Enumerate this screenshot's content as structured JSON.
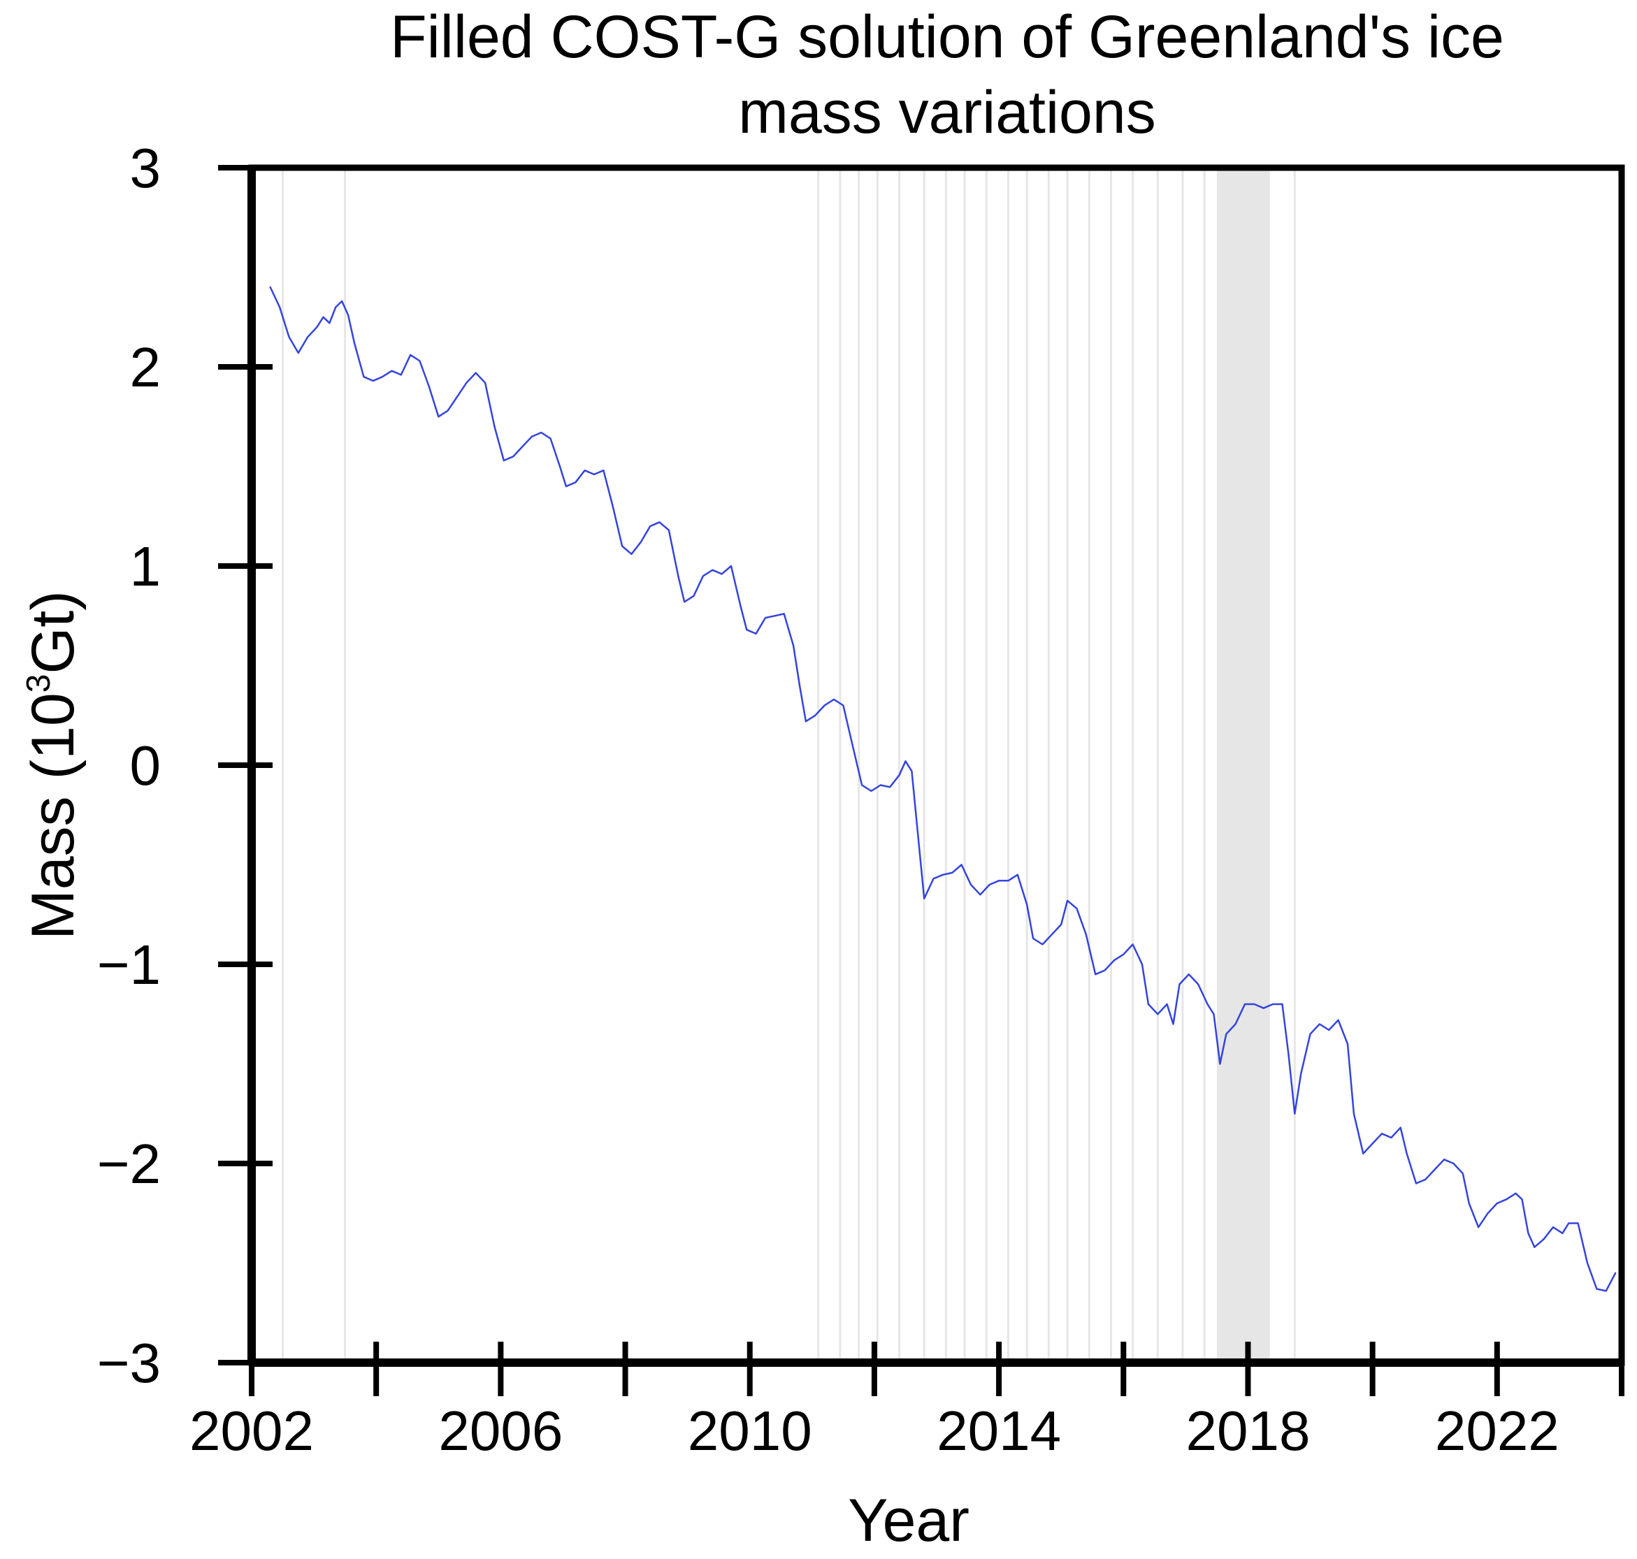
{
  "chart_data": {
    "type": "line",
    "title_lines": [
      "Filled COST-G solution of Greenland's ice",
      "mass variations"
    ],
    "xlabel": "Year",
    "ylabel": "Mass (10",
    "ylabel_sup": "3",
    "ylabel_unit": "Gt)",
    "xlim": [
      2002,
      2024
    ],
    "ylim": [
      -3,
      3
    ],
    "xticks": [
      2002,
      2004,
      2006,
      2008,
      2010,
      2012,
      2014,
      2016,
      2018,
      2020,
      2022,
      2024
    ],
    "xtick_labels": [
      {
        "value": 2002,
        "label": "2002"
      },
      {
        "value": 2006,
        "label": "2006"
      },
      {
        "value": 2010,
        "label": "2010"
      },
      {
        "value": 2014,
        "label": "2014"
      },
      {
        "value": 2018,
        "label": "2018"
      },
      {
        "value": 2022,
        "label": "2022"
      }
    ],
    "yticks": [
      {
        "value": 3,
        "label": "3"
      },
      {
        "value": 2,
        "label": "2"
      },
      {
        "value": 1,
        "label": "1"
      },
      {
        "value": 0,
        "label": "0"
      },
      {
        "value": -1,
        "label": "−1"
      },
      {
        "value": -2,
        "label": "−2"
      },
      {
        "value": -3,
        "label": "−3"
      }
    ],
    "gap_lines": [
      2002.5,
      2003.5,
      2011.1,
      2011.45,
      2011.75,
      2012.05,
      2012.4,
      2012.8,
      2013.15,
      2013.45,
      2013.8,
      2014.15,
      2014.45,
      2014.8,
      2015.1,
      2015.45,
      2015.8,
      2016.15,
      2016.55,
      2016.95,
      2017.3,
      2018.75
    ],
    "gap_band": [
      2017.5,
      2018.35
    ],
    "colors": {
      "line": "#3344dd",
      "gap": "#e6e6e6",
      "axis": "#000000"
    },
    "series": [
      {
        "name": "Greenland mass",
        "points": [
          [
            2002.3,
            2.4
          ],
          [
            2002.45,
            2.3
          ],
          [
            2002.6,
            2.15
          ],
          [
            2002.75,
            2.07
          ],
          [
            2002.9,
            2.15
          ],
          [
            2003.05,
            2.2
          ],
          [
            2003.15,
            2.25
          ],
          [
            2003.25,
            2.22
          ],
          [
            2003.35,
            2.3
          ],
          [
            2003.45,
            2.33
          ],
          [
            2003.55,
            2.26
          ],
          [
            2003.65,
            2.12
          ],
          [
            2003.8,
            1.95
          ],
          [
            2003.95,
            1.93
          ],
          [
            2004.1,
            1.95
          ],
          [
            2004.25,
            1.98
          ],
          [
            2004.4,
            1.96
          ],
          [
            2004.55,
            2.06
          ],
          [
            2004.7,
            2.03
          ],
          [
            2004.85,
            1.9
          ],
          [
            2005.0,
            1.75
          ],
          [
            2005.15,
            1.78
          ],
          [
            2005.3,
            1.85
          ],
          [
            2005.45,
            1.92
          ],
          [
            2005.6,
            1.97
          ],
          [
            2005.75,
            1.92
          ],
          [
            2005.9,
            1.7
          ],
          [
            2006.05,
            1.53
          ],
          [
            2006.2,
            1.55
          ],
          [
            2006.35,
            1.6
          ],
          [
            2006.5,
            1.65
          ],
          [
            2006.65,
            1.67
          ],
          [
            2006.8,
            1.64
          ],
          [
            2006.95,
            1.5
          ],
          [
            2007.05,
            1.4
          ],
          [
            2007.2,
            1.42
          ],
          [
            2007.35,
            1.48
          ],
          [
            2007.5,
            1.46
          ],
          [
            2007.65,
            1.48
          ],
          [
            2007.8,
            1.3
          ],
          [
            2007.95,
            1.1
          ],
          [
            2008.1,
            1.06
          ],
          [
            2008.25,
            1.12
          ],
          [
            2008.4,
            1.2
          ],
          [
            2008.55,
            1.22
          ],
          [
            2008.7,
            1.18
          ],
          [
            2008.85,
            0.95
          ],
          [
            2008.95,
            0.82
          ],
          [
            2009.1,
            0.85
          ],
          [
            2009.25,
            0.95
          ],
          [
            2009.4,
            0.98
          ],
          [
            2009.55,
            0.96
          ],
          [
            2009.7,
            1.0
          ],
          [
            2009.85,
            0.8
          ],
          [
            2009.95,
            0.68
          ],
          [
            2010.1,
            0.66
          ],
          [
            2010.25,
            0.74
          ],
          [
            2010.4,
            0.75
          ],
          [
            2010.55,
            0.76
          ],
          [
            2010.7,
            0.6
          ],
          [
            2010.8,
            0.4
          ],
          [
            2010.9,
            0.22
          ],
          [
            2011.05,
            0.25
          ],
          [
            2011.2,
            0.3
          ],
          [
            2011.35,
            0.33
          ],
          [
            2011.5,
            0.3
          ],
          [
            2011.65,
            0.1
          ],
          [
            2011.8,
            -0.1
          ],
          [
            2011.95,
            -0.13
          ],
          [
            2012.1,
            -0.1
          ],
          [
            2012.25,
            -0.11
          ],
          [
            2012.4,
            -0.05
          ],
          [
            2012.5,
            0.02
          ],
          [
            2012.6,
            -0.03
          ],
          [
            2012.7,
            -0.35
          ],
          [
            2012.8,
            -0.67
          ],
          [
            2012.95,
            -0.57
          ],
          [
            2013.1,
            -0.55
          ],
          [
            2013.25,
            -0.54
          ],
          [
            2013.4,
            -0.5
          ],
          [
            2013.55,
            -0.6
          ],
          [
            2013.7,
            -0.65
          ],
          [
            2013.85,
            -0.6
          ],
          [
            2014.0,
            -0.58
          ],
          [
            2014.15,
            -0.58
          ],
          [
            2014.3,
            -0.55
          ],
          [
            2014.45,
            -0.7
          ],
          [
            2014.55,
            -0.87
          ],
          [
            2014.7,
            -0.9
          ],
          [
            2014.85,
            -0.85
          ],
          [
            2015.0,
            -0.8
          ],
          [
            2015.1,
            -0.68
          ],
          [
            2015.25,
            -0.72
          ],
          [
            2015.4,
            -0.85
          ],
          [
            2015.55,
            -1.05
          ],
          [
            2015.7,
            -1.03
          ],
          [
            2015.85,
            -0.98
          ],
          [
            2016.0,
            -0.95
          ],
          [
            2016.15,
            -0.9
          ],
          [
            2016.3,
            -1.0
          ],
          [
            2016.4,
            -1.2
          ],
          [
            2016.55,
            -1.25
          ],
          [
            2016.7,
            -1.2
          ],
          [
            2016.8,
            -1.3
          ],
          [
            2016.9,
            -1.1
          ],
          [
            2017.05,
            -1.05
          ],
          [
            2017.2,
            -1.1
          ],
          [
            2017.35,
            -1.2
          ],
          [
            2017.45,
            -1.25
          ],
          [
            2017.55,
            -1.5
          ],
          [
            2017.65,
            -1.35
          ],
          [
            2017.8,
            -1.3
          ],
          [
            2017.95,
            -1.2
          ],
          [
            2018.1,
            -1.2
          ],
          [
            2018.25,
            -1.22
          ],
          [
            2018.4,
            -1.2
          ],
          [
            2018.55,
            -1.2
          ],
          [
            2018.65,
            -1.45
          ],
          [
            2018.75,
            -1.75
          ],
          [
            2018.85,
            -1.55
          ],
          [
            2019.0,
            -1.35
          ],
          [
            2019.15,
            -1.3
          ],
          [
            2019.3,
            -1.33
          ],
          [
            2019.45,
            -1.28
          ],
          [
            2019.6,
            -1.4
          ],
          [
            2019.7,
            -1.75
          ],
          [
            2019.85,
            -1.95
          ],
          [
            2020.0,
            -1.9
          ],
          [
            2020.15,
            -1.85
          ],
          [
            2020.3,
            -1.87
          ],
          [
            2020.45,
            -1.82
          ],
          [
            2020.55,
            -1.95
          ],
          [
            2020.7,
            -2.1
          ],
          [
            2020.85,
            -2.08
          ],
          [
            2021.0,
            -2.03
          ],
          [
            2021.15,
            -1.98
          ],
          [
            2021.3,
            -2.0
          ],
          [
            2021.45,
            -2.05
          ],
          [
            2021.55,
            -2.2
          ],
          [
            2021.7,
            -2.32
          ],
          [
            2021.85,
            -2.25
          ],
          [
            2022.0,
            -2.2
          ],
          [
            2022.15,
            -2.18
          ],
          [
            2022.3,
            -2.15
          ],
          [
            2022.4,
            -2.18
          ],
          [
            2022.5,
            -2.35
          ],
          [
            2022.6,
            -2.42
          ],
          [
            2022.75,
            -2.38
          ],
          [
            2022.9,
            -2.32
          ],
          [
            2023.05,
            -2.35
          ],
          [
            2023.15,
            -2.3
          ],
          [
            2023.3,
            -2.3
          ],
          [
            2023.45,
            -2.5
          ],
          [
            2023.6,
            -2.63
          ],
          [
            2023.75,
            -2.64
          ],
          [
            2023.9,
            -2.55
          ]
        ]
      }
    ]
  }
}
